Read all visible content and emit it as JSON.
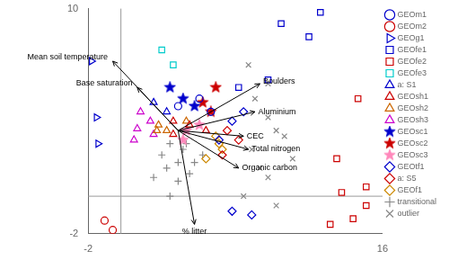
{
  "chart_data": {
    "type": "scatter",
    "xlim": [
      -2,
      16
    ],
    "ylim": [
      -2,
      10
    ],
    "xticks": [
      -2,
      16
    ],
    "yticks": [
      -2,
      10
    ],
    "grid": false,
    "legend": "right",
    "vlines": [
      0
    ],
    "hlines": [
      0
    ],
    "annotations": [
      {
        "text": "Mean soil temperature",
        "from": [
          3.5,
          3.5
        ],
        "to": [
          -0.5,
          7.2
        ],
        "at": [
          -0.8,
          7.4
        ],
        "align": "right"
      },
      {
        "text": "Base saturation",
        "from": [
          3.5,
          3.5
        ],
        "to": [
          1.0,
          5.8
        ],
        "at": [
          0.7,
          6.0
        ],
        "align": "right"
      },
      {
        "text": "Boulders",
        "from": [
          3.5,
          3.5
        ],
        "to": [
          8.5,
          6.0
        ],
        "at": [
          8.7,
          6.1
        ],
        "align": "left"
      },
      {
        "text": "Aluminium",
        "from": [
          3.5,
          3.5
        ],
        "to": [
          8.2,
          4.5
        ],
        "at": [
          8.4,
          4.5
        ],
        "align": "left"
      },
      {
        "text": "CEC",
        "from": [
          3.5,
          3.5
        ],
        "to": [
          7.5,
          3.2
        ],
        "at": [
          7.7,
          3.2
        ],
        "align": "left"
      },
      {
        "text": "Total nitrogen",
        "from": [
          3.5,
          3.5
        ],
        "to": [
          7.8,
          2.5
        ],
        "at": [
          8.0,
          2.5
        ],
        "align": "left"
      },
      {
        "text": "Organic carbon",
        "from": [
          3.5,
          3.5
        ],
        "to": [
          7.2,
          1.5
        ],
        "at": [
          7.4,
          1.5
        ],
        "align": "left"
      },
      {
        "text": "% litter",
        "from": [
          3.5,
          3.5
        ],
        "to": [
          4.5,
          -1.5
        ],
        "at": [
          4.5,
          -1.9
        ],
        "align": "center"
      }
    ],
    "series": [
      {
        "name": "GEOm1",
        "color": "#0000cc",
        "marker": "circle-open",
        "values": [
          [
            3.5,
            4.8
          ],
          [
            5.5,
            4.5
          ],
          [
            4.8,
            5.2
          ]
        ]
      },
      {
        "name": "GEOm2",
        "color": "#cc0000",
        "marker": "circle-open",
        "values": [
          [
            -1.0,
            -1.3
          ],
          [
            -0.5,
            -1.8
          ]
        ]
      },
      {
        "name": "GEOg1",
        "color": "#0000cc",
        "marker": "triangle-right-open",
        "values": [
          [
            -1.8,
            7.2
          ],
          [
            -1.5,
            4.2
          ],
          [
            -1.4,
            2.8
          ]
        ]
      },
      {
        "name": "GEOfe1",
        "color": "#0000cc",
        "marker": "square-open",
        "values": [
          [
            9.8,
            9.2
          ],
          [
            11.5,
            8.5
          ],
          [
            7.2,
            5.8
          ],
          [
            9.0,
            6.2
          ],
          [
            12.2,
            9.8
          ]
        ]
      },
      {
        "name": "GEOfe2",
        "color": "#cc0000",
        "marker": "square-open",
        "values": [
          [
            14.5,
            5.2
          ],
          [
            13.5,
            0.2
          ],
          [
            15.0,
            -0.5
          ],
          [
            15.0,
            0.5
          ],
          [
            13.2,
            2.0
          ],
          [
            12.8,
            -1.5
          ],
          [
            14.2,
            -1.2
          ]
        ]
      },
      {
        "name": "GEOfe3",
        "color": "#00cccc",
        "marker": "square-open",
        "values": [
          [
            2.5,
            7.8
          ],
          [
            3.2,
            7.0
          ]
        ]
      },
      {
        "name": "a: S1",
        "color": "#0000cc",
        "marker": "triangle-up-open",
        "values": [
          [
            2.0,
            5.0
          ],
          [
            2.8,
            4.5
          ]
        ]
      },
      {
        "name": "GEOsh1",
        "color": "#cc0000",
        "marker": "triangle-up-open",
        "values": [
          [
            3.2,
            4.0
          ],
          [
            4.2,
            3.8
          ],
          [
            3.2,
            3.3
          ],
          [
            5.2,
            3.5
          ]
        ]
      },
      {
        "name": "GEOsh2",
        "color": "#cc6600",
        "marker": "triangle-up-open",
        "values": [
          [
            2.3,
            3.8
          ],
          [
            2.2,
            3.5
          ],
          [
            4.0,
            4.0
          ],
          [
            2.8,
            3.5
          ]
        ]
      },
      {
        "name": "GEOsh3",
        "color": "#cc00cc",
        "marker": "triangle-up-open",
        "values": [
          [
            1.0,
            3.6
          ],
          [
            1.8,
            4.0
          ],
          [
            1.2,
            4.5
          ],
          [
            2.0,
            3.3
          ],
          [
            0.8,
            3.0
          ]
        ]
      },
      {
        "name": "GEOsc1",
        "color": "#0000cc",
        "marker": "star",
        "values": [
          [
            3.0,
            5.8
          ],
          [
            3.8,
            5.2
          ],
          [
            4.5,
            4.8
          ]
        ]
      },
      {
        "name": "GEOsc2",
        "color": "#cc0000",
        "marker": "star",
        "values": [
          [
            5.8,
            5.8
          ],
          [
            5.0,
            5.0
          ],
          [
            5.5,
            4.5
          ]
        ]
      },
      {
        "name": "GEOsc3",
        "color": "#ff88bb",
        "marker": "star",
        "values": [
          [
            4.0,
            3.5
          ],
          [
            4.8,
            3.8
          ],
          [
            3.8,
            3.0
          ]
        ]
      },
      {
        "name": "GEOtf1",
        "color": "#0000cc",
        "marker": "diamond-open",
        "values": [
          [
            6.8,
            4.0
          ],
          [
            7.5,
            4.5
          ],
          [
            6.0,
            3.0
          ],
          [
            6.8,
            -0.8
          ],
          [
            8.0,
            -1.0
          ]
        ]
      },
      {
        "name": "a: S5",
        "color": "#cc0000",
        "marker": "diamond-open",
        "values": [
          [
            6.5,
            3.5
          ],
          [
            7.2,
            3.0
          ],
          [
            6.2,
            2.2
          ]
        ]
      },
      {
        "name": "GEOf1",
        "color": "#cc8800",
        "marker": "diamond-open",
        "values": [
          [
            5.8,
            3.2
          ],
          [
            6.2,
            2.5
          ],
          [
            5.2,
            2.0
          ],
          [
            6.0,
            2.8
          ]
        ]
      },
      {
        "name": "transitional",
        "color": "#888888",
        "marker": "plus",
        "values": [
          [
            3.0,
            2.8
          ],
          [
            3.8,
            2.5
          ],
          [
            2.5,
            2.2
          ],
          [
            3.5,
            1.8
          ],
          [
            4.2,
            1.2
          ],
          [
            2.8,
            1.5
          ],
          [
            4.5,
            1.8
          ],
          [
            3.5,
            0.8
          ],
          [
            3.0,
            0.0
          ],
          [
            2.0,
            1.0
          ],
          [
            5.0,
            2.2
          ],
          [
            4.0,
            2.8
          ]
        ]
      },
      {
        "name": "outlier",
        "color": "#888888",
        "marker": "x",
        "values": [
          [
            7.8,
            7.0
          ],
          [
            9.0,
            6.0
          ],
          [
            8.2,
            5.2
          ],
          [
            9.0,
            4.2
          ],
          [
            9.5,
            3.5
          ],
          [
            8.0,
            2.5
          ],
          [
            8.5,
            1.5
          ],
          [
            9.0,
            1.0
          ],
          [
            7.5,
            0.0
          ],
          [
            9.5,
            -0.5
          ],
          [
            10.5,
            2.0
          ],
          [
            10.0,
            3.2
          ]
        ]
      }
    ]
  }
}
